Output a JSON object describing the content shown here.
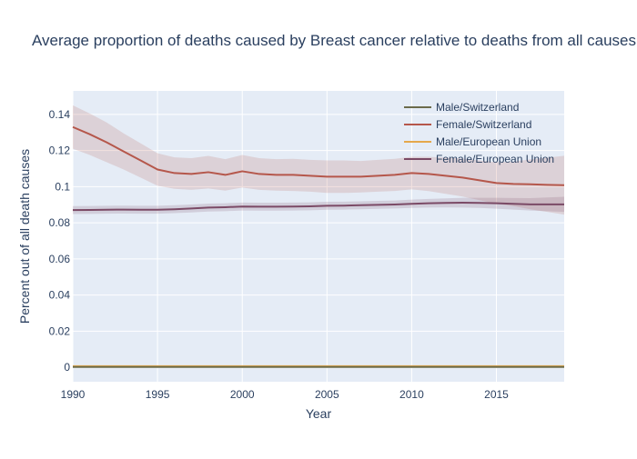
{
  "chart_data": {
    "type": "line",
    "title": "Average proportion of deaths caused by Breast cancer relative to deaths from all causes",
    "xlabel": "Year",
    "ylabel": "Percent out of all death causes",
    "xlim": [
      1990,
      2019
    ],
    "ylim": [
      -0.008,
      0.153
    ],
    "x_ticks": [
      1990,
      1995,
      2000,
      2005,
      2010,
      2015
    ],
    "y_ticks": [
      0,
      0.02,
      0.04,
      0.06,
      0.08,
      0.1,
      0.12,
      0.14
    ],
    "y_tick_labels": [
      "0",
      "0.02",
      "0.04",
      "0.06",
      "0.08",
      "0.1",
      "0.12",
      "0.14"
    ],
    "grid": true,
    "legend_position": "top-right",
    "x": [
      1990,
      1991,
      1992,
      1993,
      1994,
      1995,
      1996,
      1997,
      1998,
      1999,
      2000,
      2001,
      2002,
      2003,
      2004,
      2005,
      2006,
      2007,
      2008,
      2009,
      2010,
      2011,
      2012,
      2013,
      2014,
      2015,
      2016,
      2017,
      2018,
      2019
    ],
    "series": [
      {
        "name": "Male/Switzerland",
        "color": "#6b6b4b",
        "values": [
          0.0002,
          0.0002,
          0.0002,
          0.0002,
          0.0002,
          0.0002,
          0.0002,
          0.0002,
          0.0002,
          0.0002,
          0.0002,
          0.0002,
          0.0002,
          0.0002,
          0.0002,
          0.0002,
          0.0002,
          0.0002,
          0.0002,
          0.0002,
          0.0002,
          0.0002,
          0.0002,
          0.0002,
          0.0002,
          0.0002,
          0.0002,
          0.0002,
          0.0002,
          0.0002
        ],
        "lower": [
          0.0001,
          0.0001,
          0.0001,
          0.0001,
          0.0001,
          0.0001,
          0.0001,
          0.0001,
          0.0001,
          0.0001,
          0.0001,
          0.0001,
          0.0001,
          0.0001,
          0.0001,
          0.0001,
          0.0001,
          0.0001,
          0.0001,
          0.0001,
          0.0001,
          0.0001,
          0.0001,
          0.0001,
          0.0001,
          0.0001,
          0.0001,
          0.0001,
          0.0001,
          0.0001
        ],
        "upper": [
          0.0003,
          0.0003,
          0.0003,
          0.0003,
          0.0003,
          0.0003,
          0.0003,
          0.0003,
          0.0003,
          0.0003,
          0.0003,
          0.0003,
          0.0003,
          0.0003,
          0.0003,
          0.0003,
          0.0003,
          0.0003,
          0.0003,
          0.0003,
          0.0003,
          0.0003,
          0.0003,
          0.0003,
          0.0003,
          0.0003,
          0.0003,
          0.0003,
          0.0003,
          0.0003
        ]
      },
      {
        "name": "Female/Switzerland",
        "color": "#b5574b",
        "band_color": "#b5574b",
        "values": [
          0.133,
          0.129,
          0.1245,
          0.1195,
          0.1145,
          0.1095,
          0.1075,
          0.107,
          0.108,
          0.1065,
          0.1085,
          0.107,
          0.1065,
          0.1065,
          0.106,
          0.1055,
          0.1055,
          0.1055,
          0.106,
          0.1065,
          0.1075,
          0.107,
          0.106,
          0.105,
          0.1035,
          0.102,
          0.1015,
          0.1013,
          0.101,
          0.1008
        ],
        "lower": [
          0.121,
          0.1175,
          0.1135,
          0.1095,
          0.105,
          0.1005,
          0.0988,
          0.0982,
          0.099,
          0.0978,
          0.0995,
          0.0982,
          0.0978,
          0.0976,
          0.0972,
          0.0965,
          0.0965,
          0.0968,
          0.0972,
          0.0976,
          0.0985,
          0.0975,
          0.096,
          0.0945,
          0.0925,
          0.0905,
          0.0892,
          0.0875,
          0.086,
          0.0845
        ],
        "upper": [
          0.145,
          0.1405,
          0.1355,
          0.1295,
          0.124,
          0.1185,
          0.1162,
          0.1158,
          0.117,
          0.1152,
          0.1175,
          0.1158,
          0.1152,
          0.1154,
          0.1148,
          0.1145,
          0.1145,
          0.1142,
          0.1148,
          0.1154,
          0.1165,
          0.1165,
          0.116,
          0.1155,
          0.1145,
          0.1135,
          0.1138,
          0.1151,
          0.116,
          0.1171
        ]
      },
      {
        "name": "Male/European Union",
        "color": "#e5a84b",
        "values": [
          0.0006,
          0.0006,
          0.0006,
          0.0006,
          0.0006,
          0.0006,
          0.0006,
          0.0006,
          0.0006,
          0.0006,
          0.0006,
          0.0006,
          0.0006,
          0.0006,
          0.0006,
          0.0006,
          0.0006,
          0.0006,
          0.0006,
          0.0006,
          0.0006,
          0.0006,
          0.0006,
          0.0006,
          0.0006,
          0.0006,
          0.0006,
          0.0006,
          0.0006,
          0.0006
        ],
        "lower": [
          0.0005,
          0.0005,
          0.0005,
          0.0005,
          0.0005,
          0.0005,
          0.0005,
          0.0005,
          0.0005,
          0.0005,
          0.0005,
          0.0005,
          0.0005,
          0.0005,
          0.0005,
          0.0005,
          0.0005,
          0.0005,
          0.0005,
          0.0005,
          0.0005,
          0.0005,
          0.0005,
          0.0005,
          0.0005,
          0.0005,
          0.0005,
          0.0005,
          0.0005,
          0.0005
        ],
        "upper": [
          0.0007,
          0.0007,
          0.0007,
          0.0007,
          0.0007,
          0.0007,
          0.0007,
          0.0007,
          0.0007,
          0.0007,
          0.0007,
          0.0007,
          0.0007,
          0.0007,
          0.0007,
          0.0007,
          0.0007,
          0.0007,
          0.0007,
          0.0007,
          0.0007,
          0.0007,
          0.0007,
          0.0007,
          0.0007,
          0.0007,
          0.0007,
          0.0007,
          0.0007,
          0.0007
        ]
      },
      {
        "name": "Female/European Union",
        "color": "#7b4a66",
        "band_color": "#7b4a66",
        "values": [
          0.087,
          0.0871,
          0.0872,
          0.0873,
          0.0872,
          0.0872,
          0.0875,
          0.0879,
          0.0884,
          0.0886,
          0.089,
          0.0889,
          0.0889,
          0.089,
          0.0891,
          0.0894,
          0.0895,
          0.0897,
          0.0899,
          0.0901,
          0.0905,
          0.0908,
          0.091,
          0.0911,
          0.091,
          0.0908,
          0.0905,
          0.0902,
          0.0902,
          0.0902
        ],
        "lower": [
          0.0848,
          0.0849,
          0.085,
          0.0851,
          0.085,
          0.085,
          0.0853,
          0.0857,
          0.0862,
          0.0864,
          0.0868,
          0.0867,
          0.0867,
          0.0868,
          0.0869,
          0.0872,
          0.0873,
          0.0875,
          0.0877,
          0.0879,
          0.0882,
          0.0884,
          0.0885,
          0.0884,
          0.0882,
          0.0878,
          0.0873,
          0.0868,
          0.0864,
          0.086
        ],
        "upper": [
          0.0892,
          0.0893,
          0.0894,
          0.0895,
          0.0894,
          0.0894,
          0.0897,
          0.0901,
          0.0906,
          0.0908,
          0.0912,
          0.0911,
          0.0911,
          0.0912,
          0.0913,
          0.0916,
          0.0917,
          0.0919,
          0.0921,
          0.0923,
          0.0928,
          0.0932,
          0.0935,
          0.0938,
          0.0938,
          0.0938,
          0.0937,
          0.0936,
          0.094,
          0.0944
        ]
      }
    ]
  }
}
